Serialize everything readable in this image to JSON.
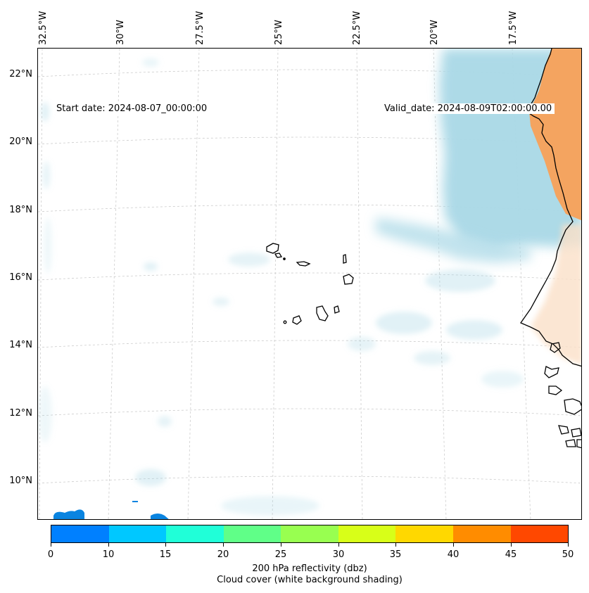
{
  "map": {
    "start_date": "Start date: 2024-08-07_00:00:00",
    "valid_date": "Valid_date: 2024-08-09T02:00:00.00",
    "lon_labels": [
      "32.5°W",
      "30°W",
      "27.5°W",
      "25°W",
      "22.5°W",
      "20°W",
      "17.5°W"
    ],
    "lat_labels": [
      "22°N",
      "20°N",
      "18°N",
      "16°N",
      "14°N",
      "12°N",
      "10°N"
    ],
    "gridlines": true
  },
  "colorbar": {
    "ticks": [
      "0",
      "10",
      "15",
      "20",
      "25",
      "30",
      "35",
      "40",
      "45",
      "50"
    ],
    "colors": [
      "#0080ff",
      "#00c8ff",
      "#20ffd8",
      "#60ff88",
      "#98ff50",
      "#d8ff18",
      "#ffd800",
      "#ff8c00",
      "#ff4800"
    ],
    "label": "200 hPa reflectivity (dbz)",
    "sublabel": "Cloud cover (white background shading)"
  },
  "colors": {
    "cloud": "#a9d8e6",
    "land_warm": "#f4a460",
    "coast": "#000000",
    "grid": "#cccccc"
  }
}
